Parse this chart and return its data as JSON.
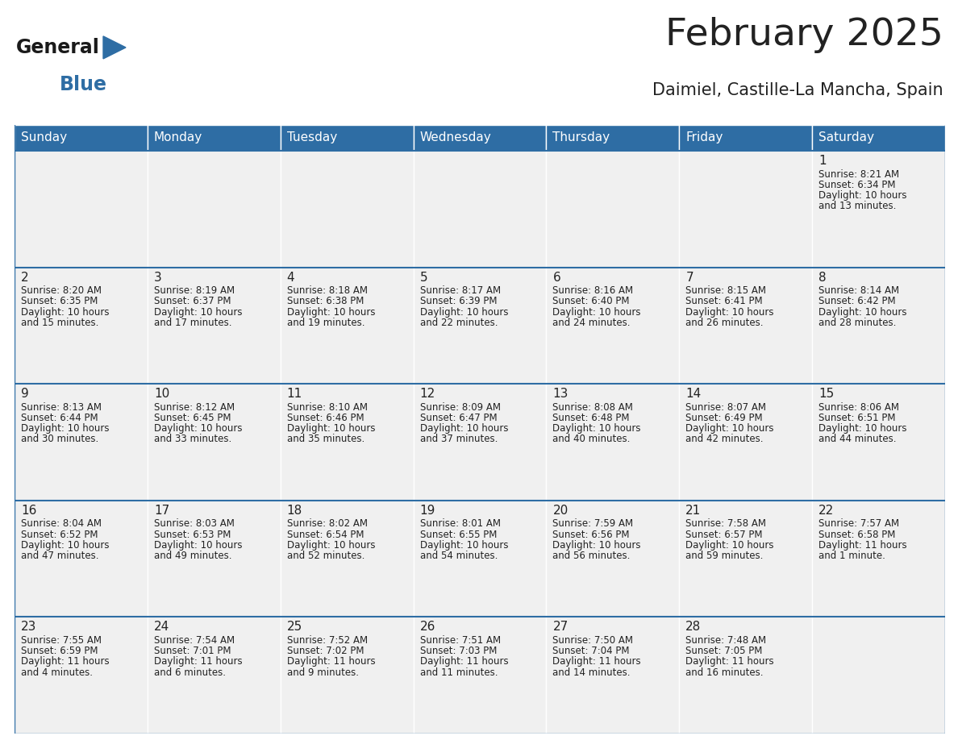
{
  "title": "February 2025",
  "subtitle": "Daimiel, Castille-La Mancha, Spain",
  "header_bg": "#2E6DA4",
  "header_text": "#FFFFFF",
  "cell_bg": "#F0F0F0",
  "border_color": "#2E6DA4",
  "text_color": "#222222",
  "day_num_color": "#222222",
  "days_of_week": [
    "Sunday",
    "Monday",
    "Tuesday",
    "Wednesday",
    "Thursday",
    "Friday",
    "Saturday"
  ],
  "weeks": [
    [
      {
        "day": null,
        "lines": []
      },
      {
        "day": null,
        "lines": []
      },
      {
        "day": null,
        "lines": []
      },
      {
        "day": null,
        "lines": []
      },
      {
        "day": null,
        "lines": []
      },
      {
        "day": null,
        "lines": []
      },
      {
        "day": 1,
        "lines": [
          "Sunrise: 8:21 AM",
          "Sunset: 6:34 PM",
          "Daylight: 10 hours",
          "and 13 minutes."
        ]
      }
    ],
    [
      {
        "day": 2,
        "lines": [
          "Sunrise: 8:20 AM",
          "Sunset: 6:35 PM",
          "Daylight: 10 hours",
          "and 15 minutes."
        ]
      },
      {
        "day": 3,
        "lines": [
          "Sunrise: 8:19 AM",
          "Sunset: 6:37 PM",
          "Daylight: 10 hours",
          "and 17 minutes."
        ]
      },
      {
        "day": 4,
        "lines": [
          "Sunrise: 8:18 AM",
          "Sunset: 6:38 PM",
          "Daylight: 10 hours",
          "and 19 minutes."
        ]
      },
      {
        "day": 5,
        "lines": [
          "Sunrise: 8:17 AM",
          "Sunset: 6:39 PM",
          "Daylight: 10 hours",
          "and 22 minutes."
        ]
      },
      {
        "day": 6,
        "lines": [
          "Sunrise: 8:16 AM",
          "Sunset: 6:40 PM",
          "Daylight: 10 hours",
          "and 24 minutes."
        ]
      },
      {
        "day": 7,
        "lines": [
          "Sunrise: 8:15 AM",
          "Sunset: 6:41 PM",
          "Daylight: 10 hours",
          "and 26 minutes."
        ]
      },
      {
        "day": 8,
        "lines": [
          "Sunrise: 8:14 AM",
          "Sunset: 6:42 PM",
          "Daylight: 10 hours",
          "and 28 minutes."
        ]
      }
    ],
    [
      {
        "day": 9,
        "lines": [
          "Sunrise: 8:13 AM",
          "Sunset: 6:44 PM",
          "Daylight: 10 hours",
          "and 30 minutes."
        ]
      },
      {
        "day": 10,
        "lines": [
          "Sunrise: 8:12 AM",
          "Sunset: 6:45 PM",
          "Daylight: 10 hours",
          "and 33 minutes."
        ]
      },
      {
        "day": 11,
        "lines": [
          "Sunrise: 8:10 AM",
          "Sunset: 6:46 PM",
          "Daylight: 10 hours",
          "and 35 minutes."
        ]
      },
      {
        "day": 12,
        "lines": [
          "Sunrise: 8:09 AM",
          "Sunset: 6:47 PM",
          "Daylight: 10 hours",
          "and 37 minutes."
        ]
      },
      {
        "day": 13,
        "lines": [
          "Sunrise: 8:08 AM",
          "Sunset: 6:48 PM",
          "Daylight: 10 hours",
          "and 40 minutes."
        ]
      },
      {
        "day": 14,
        "lines": [
          "Sunrise: 8:07 AM",
          "Sunset: 6:49 PM",
          "Daylight: 10 hours",
          "and 42 minutes."
        ]
      },
      {
        "day": 15,
        "lines": [
          "Sunrise: 8:06 AM",
          "Sunset: 6:51 PM",
          "Daylight: 10 hours",
          "and 44 minutes."
        ]
      }
    ],
    [
      {
        "day": 16,
        "lines": [
          "Sunrise: 8:04 AM",
          "Sunset: 6:52 PM",
          "Daylight: 10 hours",
          "and 47 minutes."
        ]
      },
      {
        "day": 17,
        "lines": [
          "Sunrise: 8:03 AM",
          "Sunset: 6:53 PM",
          "Daylight: 10 hours",
          "and 49 minutes."
        ]
      },
      {
        "day": 18,
        "lines": [
          "Sunrise: 8:02 AM",
          "Sunset: 6:54 PM",
          "Daylight: 10 hours",
          "and 52 minutes."
        ]
      },
      {
        "day": 19,
        "lines": [
          "Sunrise: 8:01 AM",
          "Sunset: 6:55 PM",
          "Daylight: 10 hours",
          "and 54 minutes."
        ]
      },
      {
        "day": 20,
        "lines": [
          "Sunrise: 7:59 AM",
          "Sunset: 6:56 PM",
          "Daylight: 10 hours",
          "and 56 minutes."
        ]
      },
      {
        "day": 21,
        "lines": [
          "Sunrise: 7:58 AM",
          "Sunset: 6:57 PM",
          "Daylight: 10 hours",
          "and 59 minutes."
        ]
      },
      {
        "day": 22,
        "lines": [
          "Sunrise: 7:57 AM",
          "Sunset: 6:58 PM",
          "Daylight: 11 hours",
          "and 1 minute."
        ]
      }
    ],
    [
      {
        "day": 23,
        "lines": [
          "Sunrise: 7:55 AM",
          "Sunset: 6:59 PM",
          "Daylight: 11 hours",
          "and 4 minutes."
        ]
      },
      {
        "day": 24,
        "lines": [
          "Sunrise: 7:54 AM",
          "Sunset: 7:01 PM",
          "Daylight: 11 hours",
          "and 6 minutes."
        ]
      },
      {
        "day": 25,
        "lines": [
          "Sunrise: 7:52 AM",
          "Sunset: 7:02 PM",
          "Daylight: 11 hours",
          "and 9 minutes."
        ]
      },
      {
        "day": 26,
        "lines": [
          "Sunrise: 7:51 AM",
          "Sunset: 7:03 PM",
          "Daylight: 11 hours",
          "and 11 minutes."
        ]
      },
      {
        "day": 27,
        "lines": [
          "Sunrise: 7:50 AM",
          "Sunset: 7:04 PM",
          "Daylight: 11 hours",
          "and 14 minutes."
        ]
      },
      {
        "day": 28,
        "lines": [
          "Sunrise: 7:48 AM",
          "Sunset: 7:05 PM",
          "Daylight: 11 hours",
          "and 16 minutes."
        ]
      },
      {
        "day": null,
        "lines": []
      }
    ]
  ],
  "logo_general_color": "#1a1a1a",
  "logo_blue_color": "#2E6DA4",
  "fig_width": 11.88,
  "fig_height": 9.18,
  "dpi": 100
}
